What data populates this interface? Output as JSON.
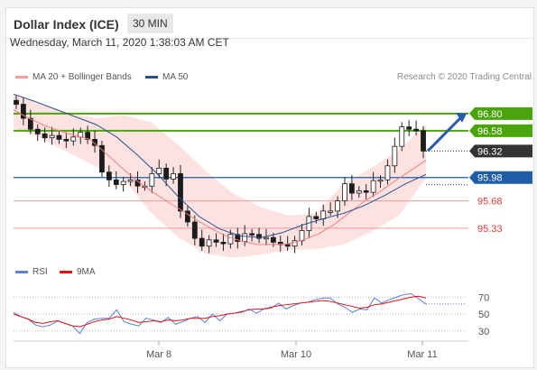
{
  "header": {
    "title": "Dollar Index (ICE)",
    "timeframe": "30 MIN"
  },
  "timestamp": "Wednesday, March 11, 2020 1:38:03 AM CET",
  "legend": {
    "bb_label": "MA 20 + Bollinger Bands",
    "ma50_label": "MA 50",
    "credit": "Research © 2020 Trading Central"
  },
  "rsi_legend": {
    "rsi_label": "RSI",
    "ma_label": "9MA"
  },
  "colors": {
    "bb": "#f4a0a0",
    "ma50": "#2c4f8c",
    "green": "#4aa40c",
    "dark": "#333333",
    "blue": "#1e5ea8",
    "red": "#e23b3b",
    "rsi": "#5a7fd8",
    "rsi_ma": "#e21010"
  },
  "chart_data": [
    {
      "type": "candlestick",
      "title": "Dollar Index (ICE)",
      "x_ticks": [
        "Mar 8",
        "Mar 10",
        "Mar 11"
      ],
      "ylim": [
        94.9,
        97.1
      ],
      "levels": [
        {
          "value": 96.8,
          "label": "96.80",
          "kind": "resistance"
        },
        {
          "value": 96.58,
          "label": "96.58",
          "kind": "resistance"
        },
        {
          "value": 96.32,
          "label": "96.32",
          "kind": "last"
        },
        {
          "value": 95.98,
          "label": "95.98",
          "kind": "pivot"
        },
        {
          "value": 95.68,
          "label": "95.68",
          "kind": "support"
        },
        {
          "value": 95.33,
          "label": "95.33",
          "kind": "support"
        }
      ],
      "close_series": [
        96.92,
        96.74,
        96.6,
        96.54,
        96.49,
        96.52,
        96.47,
        96.45,
        96.5,
        96.56,
        96.47,
        96.39,
        96.05,
        95.95,
        95.89,
        95.93,
        95.95,
        95.87,
        95.87,
        96.03,
        96.1,
        95.96,
        96.03,
        95.55,
        95.41,
        95.2,
        95.1,
        95.18,
        95.15,
        95.13,
        95.25,
        95.16,
        95.26,
        95.25,
        95.2,
        95.21,
        95.15,
        95.12,
        95.1,
        95.17,
        95.3,
        95.48,
        95.45,
        95.55,
        95.55,
        95.68,
        95.9,
        95.78,
        95.81,
        95.79,
        95.94,
        95.95,
        96.13,
        96.38,
        96.63,
        96.6,
        96.58,
        96.32
      ],
      "ma20_series": [
        96.85,
        96.74,
        96.65,
        96.58,
        96.52,
        96.47,
        96.3,
        96.12,
        95.95,
        95.81,
        95.68,
        95.56,
        95.43,
        95.32,
        95.22,
        95.16,
        95.12,
        95.12,
        95.13,
        95.18,
        95.26,
        95.38,
        95.53,
        95.68,
        95.8,
        95.94,
        96.07,
        96.2
      ],
      "ma50_series": [
        97.05,
        96.96,
        96.86,
        96.76,
        96.66,
        96.5,
        96.27,
        96.02,
        95.73,
        95.48,
        95.32,
        95.23,
        95.21,
        95.27,
        95.37,
        95.45,
        95.52,
        95.62,
        95.75,
        95.9,
        96.02
      ],
      "bb_upper": [
        97.05,
        96.92,
        96.81,
        96.74,
        96.78,
        96.69,
        96.4,
        96.06,
        95.77,
        95.6,
        95.49,
        95.52,
        95.9,
        96.1,
        96.33,
        96.66
      ],
      "bb_lower": [
        96.61,
        96.49,
        96.3,
        96.12,
        95.96,
        95.53,
        95.21,
        95.0,
        94.95,
        94.99,
        95.05,
        95.06,
        95.12,
        95.28,
        95.49,
        95.97
      ],
      "forecast": {
        "from": 96.32,
        "to": 96.8
      }
    },
    {
      "type": "line",
      "title": "RSI",
      "ylim": [
        18,
        82
      ],
      "y_ticks": [
        70,
        50,
        30
      ],
      "series": [
        {
          "name": "RSI",
          "values": [
            52,
            47,
            44,
            37,
            35,
            37,
            42,
            39,
            36,
            27,
            40,
            44,
            45,
            45,
            55,
            41,
            38,
            36,
            45,
            43,
            40,
            46,
            38,
            41,
            45,
            47,
            40,
            50,
            42,
            50,
            51,
            52,
            56,
            51,
            56,
            57,
            63,
            56,
            60,
            63,
            64,
            67,
            69,
            69,
            62,
            58,
            52,
            56,
            55,
            69,
            63,
            67,
            70,
            73,
            74,
            68,
            62
          ]
        },
        {
          "name": "9MA",
          "values": [
            50,
            47,
            44,
            40,
            39,
            41,
            42,
            39,
            36,
            35,
            38,
            41,
            43,
            44,
            47,
            45,
            43,
            40,
            41,
            42,
            41,
            43,
            42,
            43,
            45,
            45,
            45,
            47,
            48,
            50,
            51,
            53,
            55,
            56,
            56,
            58,
            60,
            61,
            62,
            63,
            64,
            65,
            66,
            65,
            63,
            61,
            59,
            57,
            58,
            61,
            62,
            64,
            66,
            68,
            70,
            71,
            69
          ]
        }
      ]
    }
  ]
}
